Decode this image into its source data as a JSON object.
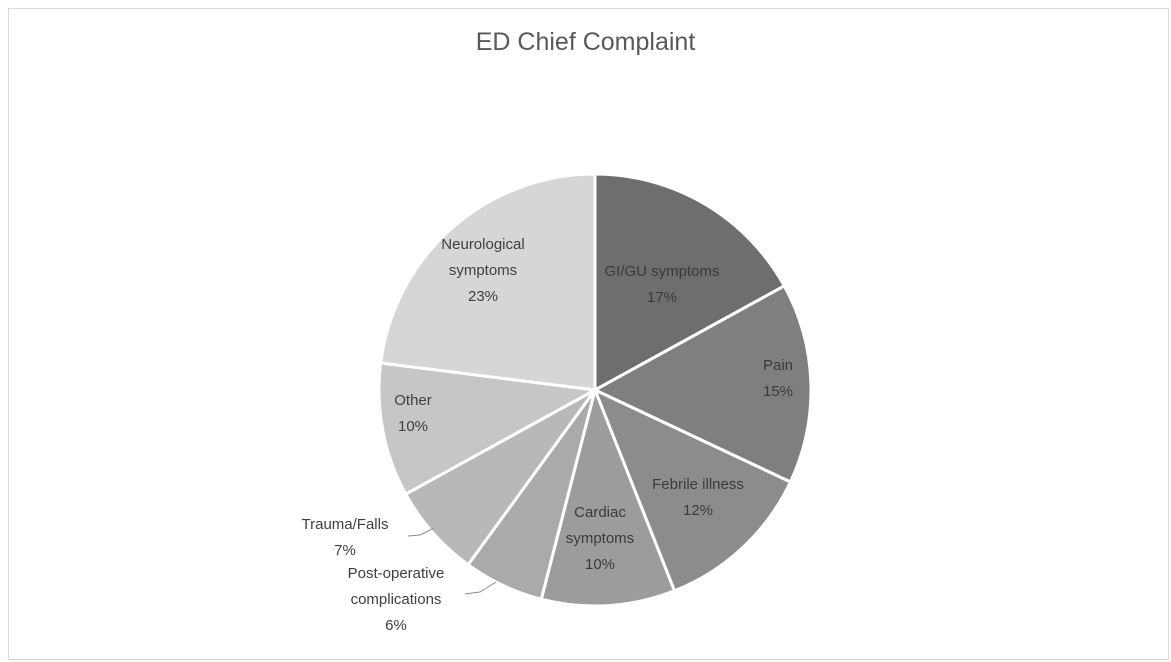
{
  "chart_data": {
    "type": "pie",
    "title": "ED Chief Complaint",
    "slices": [
      {
        "label": [
          "GI/GU symptoms"
        ],
        "percent_label": "17%",
        "value": 17,
        "color": "#6e6e6e",
        "text_color": "#3a3a3a"
      },
      {
        "label": [
          "Pain"
        ],
        "percent_label": "15%",
        "value": 15,
        "color": "#7f7f7f",
        "text_color": "#3a3a3a"
      },
      {
        "label": [
          "Febrile illness"
        ],
        "percent_label": "12%",
        "value": 12,
        "color": "#8c8c8c",
        "text_color": "#3a3a3a"
      },
      {
        "label": [
          "Cardiac",
          "symptoms"
        ],
        "percent_label": "10%",
        "value": 10,
        "color": "#9c9c9c",
        "text_color": "#3a3a3a"
      },
      {
        "label": [
          "Post-operative",
          "complications"
        ],
        "percent_label": "6%",
        "value": 6,
        "color": "#aaaaaa",
        "text_color": "#404040"
      },
      {
        "label": [
          "Trauma/Falls"
        ],
        "percent_label": "7%",
        "value": 7,
        "color": "#b8b8b8",
        "text_color": "#404040"
      },
      {
        "label": [
          "Other"
        ],
        "percent_label": "10%",
        "value": 10,
        "color": "#c6c6c6",
        "text_color": "#404040"
      },
      {
        "label": [
          "Neurological",
          "symptoms"
        ],
        "percent_label": "23%",
        "value": 23,
        "color": "#d6d6d6",
        "text_color": "#404040"
      }
    ],
    "legend": "none",
    "start_angle": "12 o'clock",
    "direction": "clockwise"
  }
}
